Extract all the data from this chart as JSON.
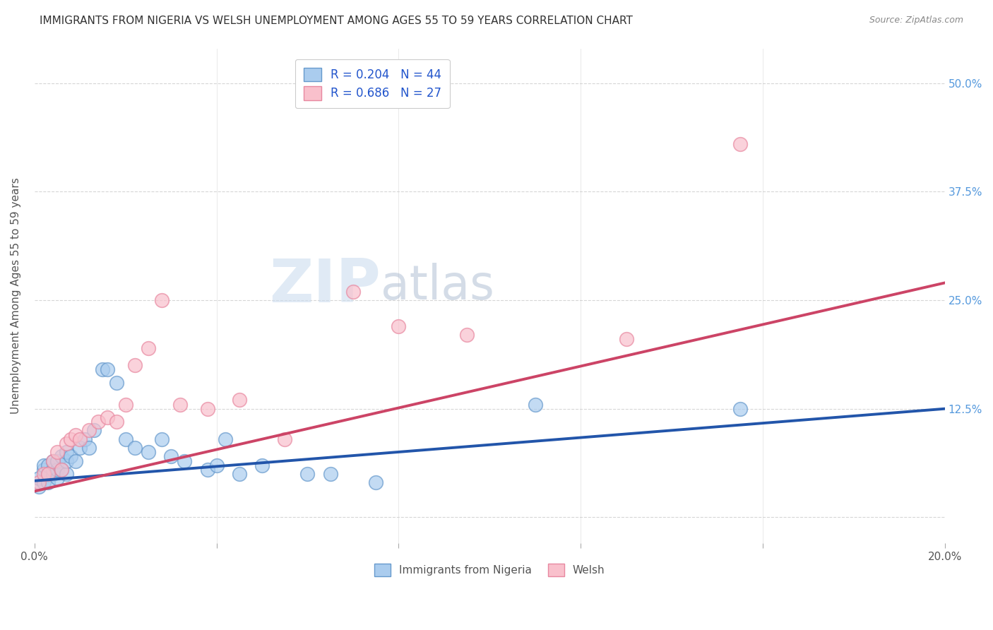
{
  "title": "IMMIGRANTS FROM NIGERIA VS WELSH UNEMPLOYMENT AMONG AGES 55 TO 59 YEARS CORRELATION CHART",
  "source": "Source: ZipAtlas.com",
  "ylabel": "Unemployment Among Ages 55 to 59 years",
  "xmin": 0.0,
  "xmax": 0.2,
  "ymin": -0.03,
  "ymax": 0.54,
  "yticks": [
    0.0,
    0.125,
    0.25,
    0.375,
    0.5
  ],
  "ytick_labels": [
    "",
    "12.5%",
    "25.0%",
    "37.5%",
    "50.0%"
  ],
  "xticks": [
    0.0,
    0.04,
    0.08,
    0.12,
    0.16,
    0.2
  ],
  "xtick_labels": [
    "0.0%",
    "",
    "",
    "",
    "",
    "20.0%"
  ],
  "blue_scatter_x": [
    0.001,
    0.001,
    0.002,
    0.002,
    0.002,
    0.003,
    0.003,
    0.003,
    0.004,
    0.004,
    0.004,
    0.005,
    0.005,
    0.005,
    0.006,
    0.006,
    0.007,
    0.007,
    0.007,
    0.008,
    0.009,
    0.01,
    0.011,
    0.012,
    0.013,
    0.015,
    0.016,
    0.018,
    0.02,
    0.022,
    0.025,
    0.028,
    0.03,
    0.033,
    0.038,
    0.04,
    0.042,
    0.045,
    0.05,
    0.06,
    0.065,
    0.075,
    0.11,
    0.155
  ],
  "blue_scatter_y": [
    0.035,
    0.045,
    0.04,
    0.055,
    0.06,
    0.04,
    0.05,
    0.06,
    0.05,
    0.055,
    0.065,
    0.045,
    0.055,
    0.065,
    0.055,
    0.07,
    0.05,
    0.065,
    0.075,
    0.07,
    0.065,
    0.08,
    0.09,
    0.08,
    0.1,
    0.17,
    0.17,
    0.155,
    0.09,
    0.08,
    0.075,
    0.09,
    0.07,
    0.065,
    0.055,
    0.06,
    0.09,
    0.05,
    0.06,
    0.05,
    0.05,
    0.04,
    0.13,
    0.125
  ],
  "pink_scatter_x": [
    0.001,
    0.002,
    0.003,
    0.004,
    0.005,
    0.006,
    0.007,
    0.008,
    0.009,
    0.01,
    0.012,
    0.014,
    0.016,
    0.018,
    0.02,
    0.022,
    0.025,
    0.028,
    0.032,
    0.038,
    0.045,
    0.055,
    0.07,
    0.08,
    0.095,
    0.13,
    0.155
  ],
  "pink_scatter_y": [
    0.04,
    0.05,
    0.05,
    0.065,
    0.075,
    0.055,
    0.085,
    0.09,
    0.095,
    0.09,
    0.1,
    0.11,
    0.115,
    0.11,
    0.13,
    0.175,
    0.195,
    0.25,
    0.13,
    0.125,
    0.135,
    0.09,
    0.26,
    0.22,
    0.21,
    0.205,
    0.43
  ],
  "blue_line_x": [
    0.0,
    0.2
  ],
  "blue_line_y": [
    0.042,
    0.125
  ],
  "pink_line_x": [
    0.0,
    0.2
  ],
  "pink_line_y": [
    0.03,
    0.27
  ],
  "blue_marker_color": "#aaccee",
  "blue_edge_color": "#6699cc",
  "pink_marker_color": "#f9c0cc",
  "pink_edge_color": "#e888a0",
  "blue_line_color": "#2255aa",
  "pink_line_color": "#cc4466",
  "legend_blue_label": "R = 0.204   N = 44",
  "legend_pink_label": "R = 0.686   N = 27",
  "legend_bottom_blue": "Immigrants from Nigeria",
  "legend_bottom_pink": "Welsh",
  "background_color": "#ffffff",
  "grid_color": "#cccccc",
  "title_color": "#333333",
  "axis_label_color": "#555555",
  "right_tick_color": "#5599dd",
  "watermark_zip_color": "#ccddef",
  "watermark_atlas_color": "#aabbd0"
}
